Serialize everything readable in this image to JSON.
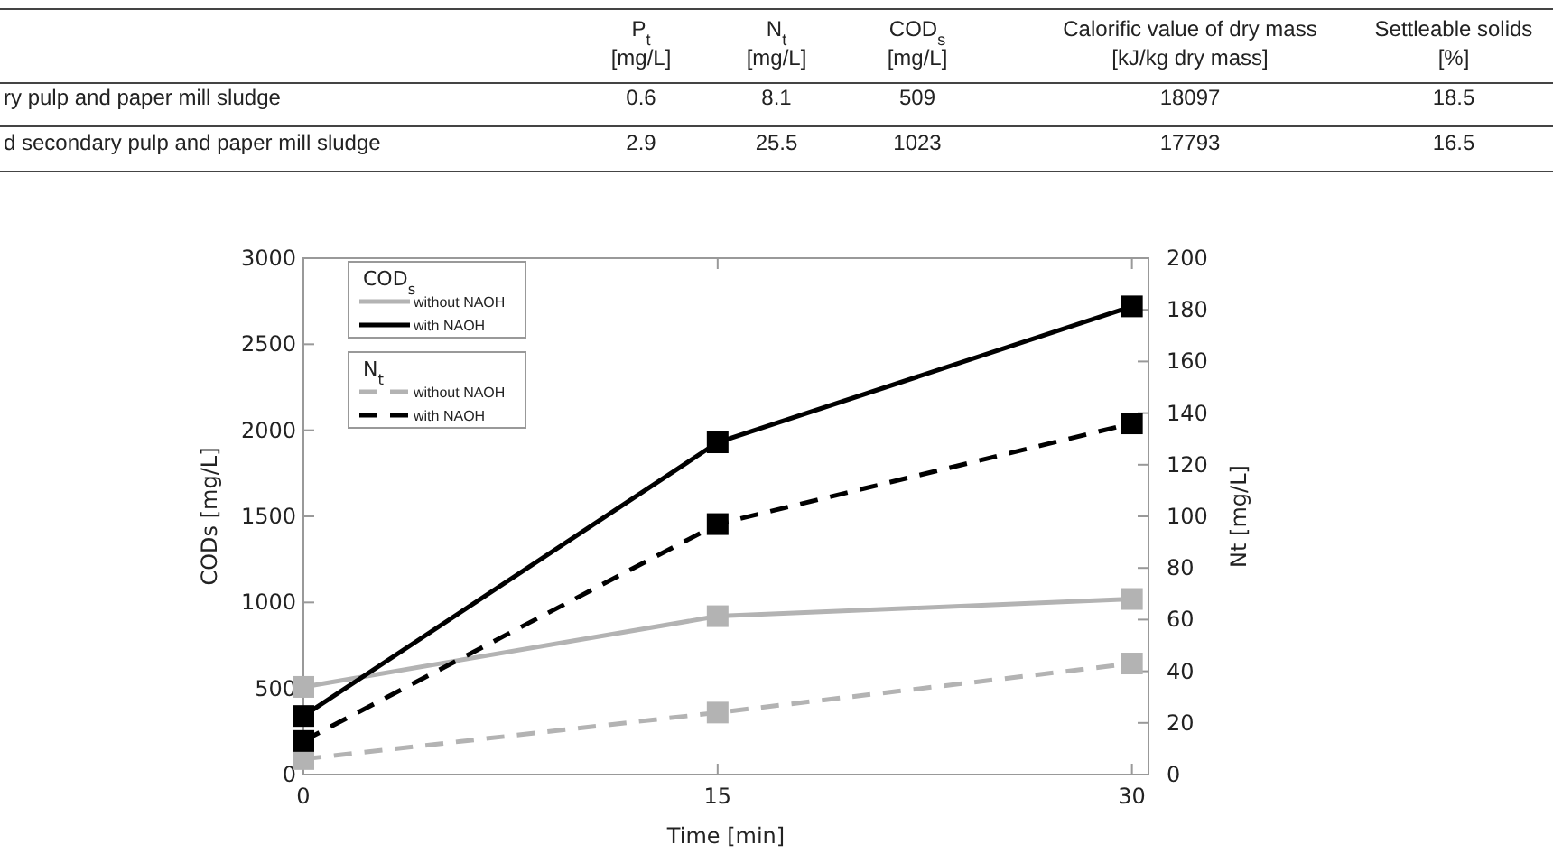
{
  "chart_data": [
    {
      "type": "other",
      "categories": [
        "P$_{t}$\n[mg/L]",
        "N$_{t}$\n[mg/L]",
        "COD$_{s}$\n[mg/L]",
        "Calorific value of dry mass\n[kJ/kg dry mass]",
        "Settleable solids\n[%]"
      ],
      "y_categories": [
        "ry pulp and paper mill sludge",
        "d secondary pulp and paper mill sludge"
      ],
      "cell_labels": [
        [
          "0.6",
          "8.1",
          "509",
          "18097",
          "18.5"
        ],
        [
          "2.9",
          "25.5",
          "1023",
          "17793",
          "16.5"
        ]
      ]
    },
    {
      "type": "line",
      "xlabel": "Time [min]",
      "ylabel": "CODs [mg/L]",
      "y2label": "Nt [mg/L]",
      "x": [
        0,
        15,
        30
      ],
      "xlim": [
        0,
        30.6
      ],
      "xticks": [
        0,
        15,
        30
      ],
      "ylim": [
        0,
        3000
      ],
      "yticks": [
        0,
        500,
        1000,
        1500,
        2000,
        2500,
        3000
      ],
      "y2lim": [
        0,
        200
      ],
      "y2ticks": [
        0,
        20,
        40,
        60,
        80,
        100,
        120,
        140,
        160,
        180,
        200
      ],
      "marker": "square",
      "legend": "top left",
      "annotations": [
        "COD$_{s}$",
        "N$_{t}$"
      ],
      "series": [
        {
          "name": "without NAOH",
          "color": "#b3b3b3",
          "line_style": "solid",
          "values": [
            509,
            920,
            1020
          ]
        },
        {
          "name": "with NAOH",
          "color": "#000000",
          "line_style": "solid",
          "values": [
            340,
            1930,
            2720
          ]
        },
        {
          "name": "without NAOH",
          "color": "#b3b3b3",
          "line_style": "dashed",
          "axis": "y2",
          "values": [
            6,
            24,
            43
          ]
        },
        {
          "name": "with NAOH",
          "color": "#000000",
          "line_style": "dashed",
          "axis": "y2",
          "values": [
            13,
            97,
            136
          ]
        }
      ]
    }
  ]
}
